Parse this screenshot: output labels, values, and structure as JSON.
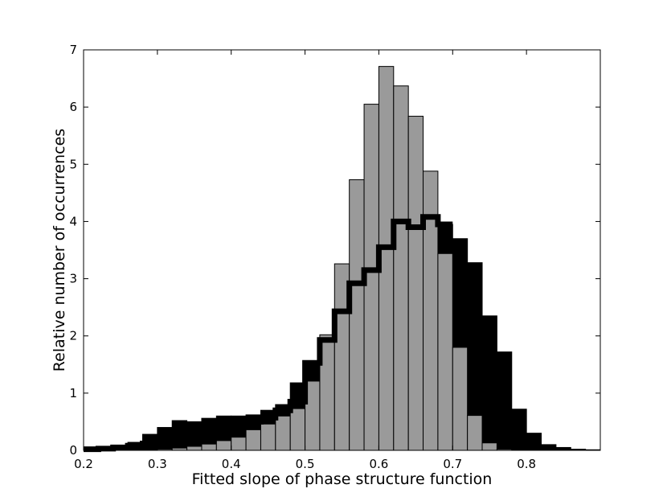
{
  "chart_data": {
    "type": "bar",
    "xlabel": "Fitted slope of phase structure function",
    "ylabel": "Relative number of occurrences",
    "xlim": [
      0.2,
      0.9
    ],
    "ylim": [
      0,
      7
    ],
    "xticks": [
      "0.2",
      "0.3",
      "0.4",
      "0.5",
      "0.6",
      "0.7",
      "0.8"
    ],
    "yticks": [
      "0",
      "1",
      "2",
      "3",
      "4",
      "5",
      "6",
      "7"
    ],
    "grid": false,
    "bin_width": 0.02,
    "series": [
      {
        "style": "filled-bars",
        "color": "#000000",
        "bins_start": [
          0.2,
          0.22,
          0.24,
          0.26,
          0.28,
          0.3,
          0.32,
          0.34,
          0.36,
          0.38,
          0.4,
          0.42,
          0.44,
          0.46,
          0.48,
          0.5,
          0.52,
          0.54,
          0.56,
          0.58,
          0.6,
          0.62,
          0.64,
          0.66,
          0.68,
          0.7,
          0.72,
          0.74,
          0.76,
          0.78,
          0.8,
          0.82,
          0.84,
          0.86,
          0.88
        ],
        "values": [
          0.02,
          0.04,
          0.08,
          0.14,
          0.28,
          0.4,
          0.52,
          0.5,
          0.56,
          0.6,
          0.6,
          0.62,
          0.7,
          0.8,
          1.18,
          1.53,
          1.98,
          2.45,
          2.92,
          3.15,
          3.55,
          4.0,
          3.9,
          4.1,
          3.95,
          3.7,
          3.28,
          2.35,
          1.72,
          0.72,
          0.3,
          0.1,
          0.05,
          0.02,
          0.01
        ]
      },
      {
        "style": "grey-bars",
        "color": "#9a9a9a",
        "bins_start": [
          0.2,
          0.22,
          0.24,
          0.26,
          0.28,
          0.3,
          0.32,
          0.34,
          0.36,
          0.38,
          0.4,
          0.42,
          0.44,
          0.46,
          0.48,
          0.5,
          0.52,
          0.54,
          0.56,
          0.58,
          0.6,
          0.62,
          0.64,
          0.66,
          0.68,
          0.7,
          0.72,
          0.74,
          0.76
        ],
        "values": [
          0.0,
          0.0,
          0.0,
          0.0,
          0.01,
          0.02,
          0.04,
          0.07,
          0.11,
          0.17,
          0.23,
          0.36,
          0.46,
          0.6,
          0.73,
          1.21,
          2.02,
          3.26,
          4.73,
          6.05,
          6.71,
          6.37,
          5.84,
          4.88,
          3.44,
          1.8,
          0.61,
          0.13,
          0.02
        ]
      },
      {
        "style": "step-line",
        "color": "#000000",
        "bins_start": [
          0.2,
          0.22,
          0.24,
          0.26,
          0.28,
          0.3,
          0.32,
          0.34,
          0.36,
          0.38,
          0.4,
          0.42,
          0.44,
          0.46,
          0.48,
          0.5,
          0.52,
          0.54,
          0.56,
          0.58,
          0.6,
          0.62,
          0.64,
          0.66,
          0.68
        ],
        "values": [
          0.02,
          0.03,
          0.05,
          0.08,
          0.12,
          0.18,
          0.28,
          0.31,
          0.37,
          0.42,
          0.46,
          0.5,
          0.57,
          0.7,
          0.85,
          1.53,
          1.93,
          2.43,
          2.92,
          3.15,
          3.55,
          4.0,
          3.9,
          4.08,
          3.95
        ]
      }
    ]
  }
}
